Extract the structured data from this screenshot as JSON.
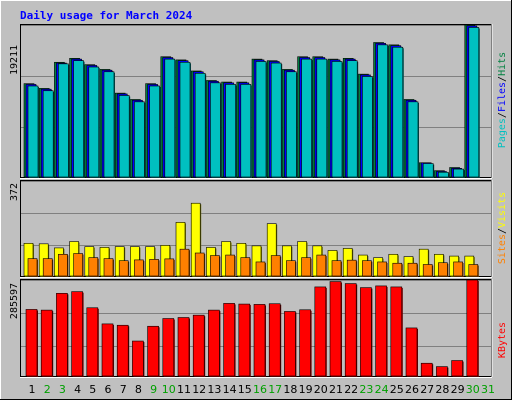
{
  "chart_data": [
    {
      "type": "bar",
      "title": "Daily usage for March 2024",
      "panel": "hits-files-pages",
      "ymax_label": "19211",
      "ylim": [
        0,
        19211
      ],
      "categories": [
        "1",
        "2",
        "3",
        "4",
        "5",
        "6",
        "7",
        "8",
        "9",
        "10",
        "11",
        "12",
        "13",
        "14",
        "15",
        "16",
        "17",
        "18",
        "19",
        "20",
        "21",
        "22",
        "23",
        "24",
        "25",
        "26",
        "27",
        "28",
        "29",
        "30",
        "31"
      ],
      "weekend_days": [
        "2",
        "3",
        "9",
        "10",
        "16",
        "17",
        "23",
        "24",
        "30",
        "31"
      ],
      "series": [
        {
          "name": "Hits",
          "color": "#008040",
          "values": [
            11800,
            11200,
            14500,
            15000,
            14200,
            13600,
            10600,
            9800,
            11800,
            15200,
            14800,
            13400,
            12200,
            12000,
            12000,
            14900,
            14700,
            13600,
            15200,
            15200,
            14900,
            15000,
            13000,
            17000,
            16700,
            9800,
            1800,
            800,
            1200,
            19211,
            0
          ]
        },
        {
          "name": "Files",
          "color": "#0000ff",
          "values": [
            11700,
            11100,
            14400,
            14900,
            14100,
            13500,
            10500,
            9700,
            11700,
            15100,
            14700,
            13300,
            12100,
            11900,
            11900,
            14800,
            14600,
            13500,
            15100,
            15100,
            14800,
            14900,
            12900,
            16900,
            16600,
            9700,
            1800,
            700,
            1100,
            19100,
            0
          ]
        },
        {
          "name": "Pages",
          "color": "#00c0c0",
          "values": [
            11500,
            10900,
            14300,
            14700,
            13900,
            13300,
            10300,
            9500,
            11500,
            14900,
            14500,
            13100,
            11900,
            11700,
            11700,
            14600,
            14400,
            13300,
            14900,
            14900,
            14600,
            14700,
            12700,
            16700,
            16400,
            9500,
            1700,
            600,
            1000,
            18900,
            0
          ]
        }
      ],
      "legend": [
        "Pages",
        "/",
        "Files",
        "/",
        "Hits"
      ],
      "legend_colors": [
        "#00c0c0",
        "#000000",
        "#0000ff",
        "#000000",
        "#008040"
      ]
    },
    {
      "type": "bar",
      "panel": "visits-sites",
      "ymax_label": "372",
      "ylim": [
        0,
        372
      ],
      "series": [
        {
          "name": "Visits",
          "color": "#ffff00",
          "values": [
            128,
            126,
            110,
            135,
            115,
            112,
            115,
            115,
            115,
            120,
            210,
            285,
            112,
            135,
            128,
            118,
            205,
            118,
            135,
            118,
            100,
            108,
            82,
            72,
            85,
            76,
            105,
            85,
            78,
            78,
            0
          ]
        },
        {
          "name": "Sites",
          "color": "#ff8000",
          "values": [
            68,
            68,
            85,
            88,
            72,
            68,
            60,
            63,
            65,
            67,
            105,
            90,
            80,
            82,
            72,
            55,
            80,
            60,
            72,
            82,
            60,
            62,
            60,
            55,
            50,
            50,
            45,
            52,
            55,
            45,
            0
          ]
        }
      ],
      "legend": [
        "Sites",
        "/",
        "Visits"
      ],
      "legend_colors": [
        "#ff8000",
        "#000000",
        "#ffff00"
      ]
    },
    {
      "type": "bar",
      "panel": "kbytes",
      "ymax_label": "285597",
      "ylim": [
        0,
        285597
      ],
      "series": [
        {
          "name": "KBytes",
          "color": "#ff0000",
          "values": [
            198000,
            196000,
            246000,
            251000,
            203000,
            155000,
            151000,
            104000,
            148000,
            171000,
            174000,
            181000,
            196000,
            216000,
            214000,
            213000,
            215000,
            192000,
            197000,
            265000,
            281000,
            275000,
            263000,
            268000,
            265000,
            143000,
            38000,
            28000,
            46000,
            285597,
            0
          ]
        }
      ],
      "legend": [
        "KBytes"
      ],
      "legend_colors": [
        "#ff0000"
      ]
    }
  ],
  "colors": {
    "background": "#c0c0c0",
    "grid": "#808080",
    "title": "#0000ff",
    "weekday_label": "#000000",
    "weekend_label": "#00a000"
  }
}
